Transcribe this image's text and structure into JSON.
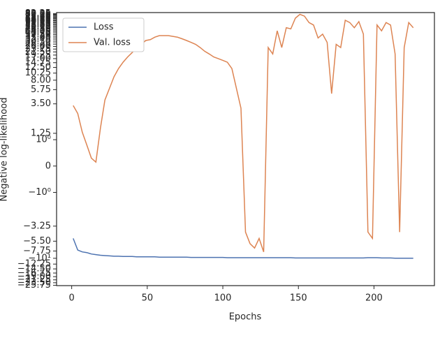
{
  "chart_data": {
    "type": "line",
    "xlabel": "Epochs",
    "ylabel": "Negative log-likelihood",
    "yscale": "symlog",
    "legend": "upper left",
    "xlim": [
      -10,
      240
    ],
    "xticks": [
      0,
      50,
      100,
      150,
      200
    ],
    "ylim": [
      -26,
      85
    ],
    "yticks": [
      {
        "value": -25.75,
        "label": "−25.75"
      },
      {
        "value": -23.5,
        "label": "−23.50"
      },
      {
        "value": -21.25,
        "label": "−21.25"
      },
      {
        "value": -19,
        "label": "−19.00"
      },
      {
        "value": -16.75,
        "label": "−16.75"
      },
      {
        "value": -14.5,
        "label": "−14.50"
      },
      {
        "value": -12.25,
        "label": "−12.25"
      },
      {
        "value": -10,
        "label": "−10¹"
      },
      {
        "value": -7.75,
        "label": "−7.75"
      },
      {
        "value": -5.5,
        "label": "−5.50"
      },
      {
        "value": -3.25,
        "label": "−3.25"
      },
      {
        "value": -1,
        "label": "−10⁰"
      },
      0,
      {
        "value": 1,
        "label": "10⁰"
      },
      1.25,
      {
        "value": 3.5,
        "label": "3.50"
      },
      5.75,
      {
        "value": 8,
        "label": "8.00"
      },
      10.25,
      {
        "value": 12.5,
        "label": "12.50"
      },
      14.75,
      {
        "value": 17,
        "label": "17.00"
      },
      19.25,
      {
        "value": 21.5,
        "label": "21.50"
      },
      23.75,
      {
        "value": 26,
        "label": "26.00"
      },
      28.25,
      {
        "value": 30.5,
        "label": "30.50"
      },
      32.75,
      {
        "value": 35,
        "label": "35.00"
      },
      37.25,
      {
        "value": 39.5,
        "label": "39.50"
      },
      41.75,
      {
        "value": 44,
        "label": "44.00"
      },
      46.25,
      {
        "value": 48.5,
        "label": "48.50"
      },
      50.75,
      {
        "value": 53,
        "label": "53.00"
      },
      55.25,
      {
        "value": 57.5,
        "label": "57.50"
      },
      59.75,
      {
        "value": 62,
        "label": "62.00"
      },
      64.25,
      {
        "value": 66.5,
        "label": "66.50"
      },
      68.75,
      {
        "value": 71,
        "label": "71.00"
      },
      73.25,
      {
        "value": 75.5,
        "label": "75.50"
      },
      77.75,
      {
        "value": 80,
        "label": "80.00"
      },
      82.25
    ],
    "x": [
      1,
      4,
      7,
      10,
      13,
      16,
      19,
      22,
      25,
      28,
      31,
      34,
      37,
      40,
      43,
      46,
      49,
      52,
      55,
      58,
      61,
      64,
      67,
      70,
      73,
      76,
      79,
      82,
      85,
      88,
      91,
      94,
      97,
      100,
      103,
      106,
      109,
      112,
      115,
      118,
      121,
      124,
      127,
      130,
      133,
      136,
      139,
      142,
      145,
      148,
      151,
      154,
      157,
      160,
      163,
      166,
      169,
      172,
      175,
      178,
      181,
      184,
      187,
      190,
      193,
      196,
      199,
      202,
      205,
      208,
      211,
      214,
      217,
      220,
      223,
      226
    ],
    "series": [
      {
        "name": "Loss",
        "color": "#4c72b0",
        "values": [
          -5,
          -7.5,
          -8,
          -8.2,
          -8.6,
          -8.8,
          -9,
          -9.1,
          -9.2,
          -9.3,
          -9.3,
          -9.4,
          -9.4,
          -9.4,
          -9.5,
          -9.5,
          -9.5,
          -9.5,
          -9.5,
          -9.6,
          -9.6,
          -9.6,
          -9.6,
          -9.6,
          -9.6,
          -9.6,
          -9.7,
          -9.7,
          -9.7,
          -9.7,
          -9.7,
          -9.7,
          -9.7,
          -9.7,
          -9.8,
          -9.8,
          -9.8,
          -9.8,
          -9.8,
          -9.8,
          -9.8,
          -9.8,
          -9.8,
          -9.8,
          -9.8,
          -9.8,
          -9.8,
          -9.8,
          -9.8,
          -9.9,
          -9.9,
          -9.9,
          -9.9,
          -9.9,
          -9.9,
          -9.9,
          -9.9,
          -9.9,
          -9.9,
          -9.9,
          -9.9,
          -9.9,
          -9.9,
          -9.9,
          -9.9,
          -9.8,
          -9.8,
          -9.8,
          -9.9,
          -9.9,
          -9.9,
          -10,
          -10,
          -10,
          -10,
          -10
        ]
      },
      {
        "name": "Val. loss",
        "color": "#dd8452",
        "values": [
          3.3,
          2.5,
          1.3,
          0.8,
          0.3,
          0.15,
          1.5,
          4,
          6,
          9,
          12,
          15,
          18,
          21,
          25,
          28,
          32,
          33,
          36,
          38,
          38,
          38,
          37,
          36,
          34,
          32,
          30,
          28,
          25,
          22,
          20,
          18,
          17,
          16,
          15,
          12,
          6,
          3,
          -4,
          -6,
          -7,
          -5,
          -8,
          25,
          20,
          45,
          25,
          50,
          48,
          70,
          80,
          75,
          60,
          55,
          35,
          40,
          30,
          5,
          28,
          25,
          65,
          60,
          50,
          62,
          40,
          -4,
          -5,
          55,
          45,
          60,
          55,
          20,
          -4,
          25,
          60,
          50
        ]
      }
    ]
  }
}
